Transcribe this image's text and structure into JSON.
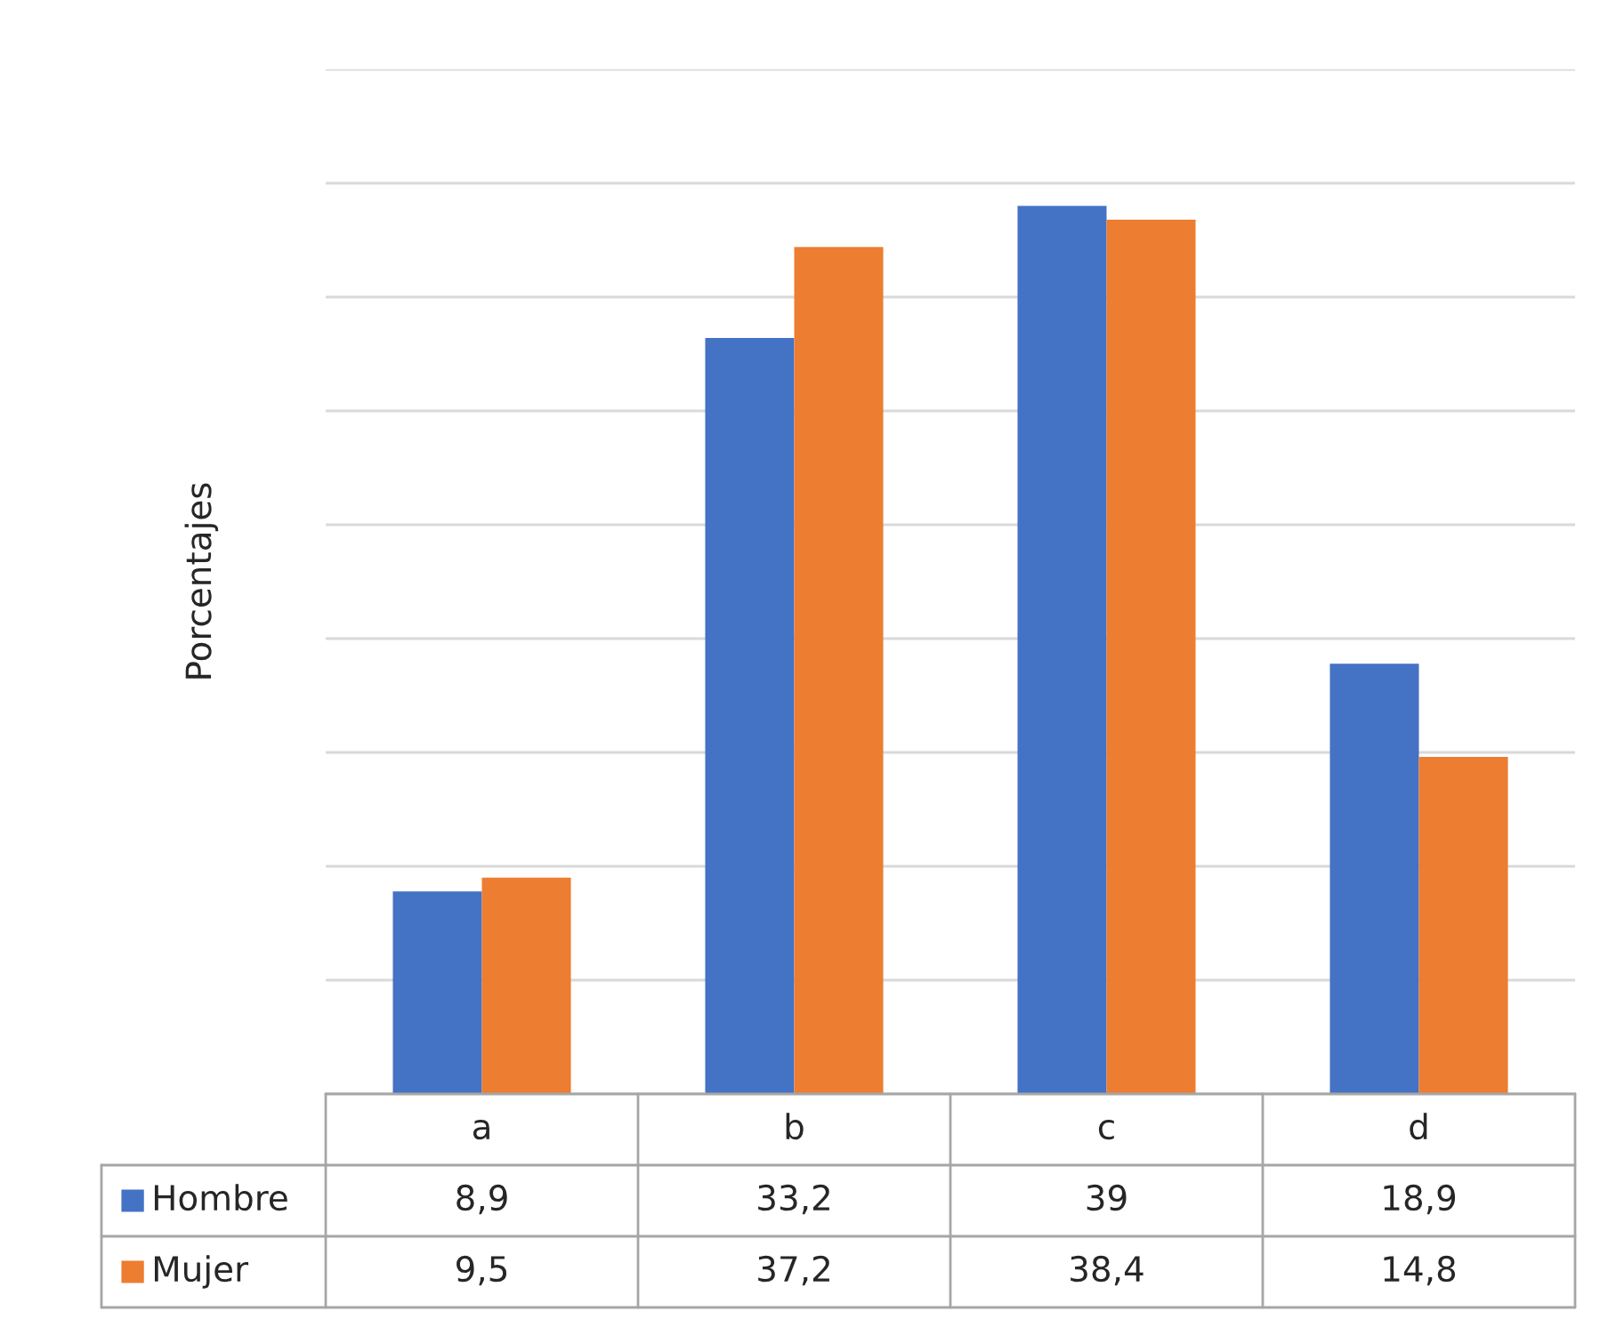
{
  "chart_data": {
    "type": "bar",
    "ylabel": "Porcentajes",
    "categories": [
      "a",
      "b",
      "c",
      "d"
    ],
    "series": [
      {
        "name": "Hombre",
        "color": "#4472c4",
        "values": [
          8.9,
          33.2,
          39,
          18.9
        ],
        "value_labels": [
          "8,9",
          "33,2",
          "39",
          "18,9"
        ]
      },
      {
        "name": "Mujer",
        "color": "#ed7d31",
        "values": [
          9.5,
          37.2,
          38.4,
          14.8
        ],
        "value_labels": [
          "9,5",
          "37,2",
          "38,4",
          "14,8"
        ]
      }
    ],
    "ylim": [
      0,
      45
    ],
    "yticks": [
      {
        "value": 0,
        "label": null
      },
      {
        "value": 5,
        "label": null
      },
      {
        "value": 10,
        "label": null
      },
      {
        "value": 15,
        "label": null
      },
      {
        "value": 20,
        "label": null
      },
      {
        "value": 25,
        "label": null
      },
      {
        "value": 30,
        "label": null
      },
      {
        "value": 35,
        "label": null
      },
      {
        "value": 40,
        "label": null
      },
      {
        "value": 45,
        "label": null
      }
    ],
    "grid": "y",
    "legend": "bottom"
  }
}
